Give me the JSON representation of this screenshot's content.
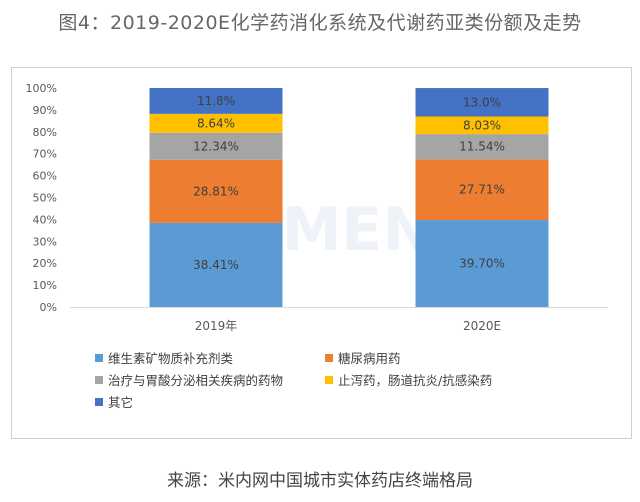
{
  "title": "图4：2019-2020E化学药消化系统及代谢药亚类份额及走势",
  "source": "来源：米内网中国城市实体药店终端格局",
  "watermark": "米内MENET",
  "chart_data": {
    "type": "bar",
    "stacked": true,
    "categories": [
      "2019年",
      "2020E"
    ],
    "y_ticks": [
      "0%",
      "10%",
      "20%",
      "30%",
      "40%",
      "50%",
      "60%",
      "70%",
      "80%",
      "90%",
      "100%"
    ],
    "ylim": [
      0,
      100
    ],
    "grid": false,
    "legend_position": "bottom",
    "series": [
      {
        "name": "维生素矿物质补充剂类",
        "color": "#5B9BD5",
        "values": [
          38.41,
          39.7
        ],
        "labels": [
          "38.41%",
          "39.70%"
        ]
      },
      {
        "name": "糖尿病用药",
        "color": "#ED7D31",
        "values": [
          28.81,
          27.71
        ],
        "labels": [
          "28.81%",
          "27.71%"
        ]
      },
      {
        "name": "治疗与胃酸分泌相关疾病的药物",
        "color": "#A5A5A5",
        "values": [
          12.34,
          11.54
        ],
        "labels": [
          "12.34%",
          "11.54%"
        ]
      },
      {
        "name": "止泻药，肠道抗炎/抗感染药",
        "color": "#FFC000",
        "values": [
          8.64,
          8.03
        ],
        "labels": [
          "8.64%",
          "8.03%"
        ]
      },
      {
        "name": "其它",
        "color": "#4472C4",
        "values": [
          11.8,
          13.0
        ],
        "labels": [
          "11.8%",
          "13.0%"
        ]
      }
    ]
  }
}
